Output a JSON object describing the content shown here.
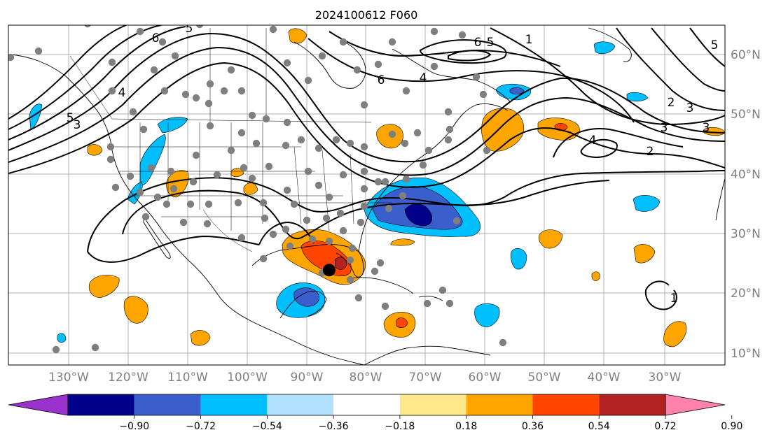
{
  "title": "2024100612 F060",
  "map": {
    "lon_labels": [
      "130°W",
      "120°W",
      "110°W",
      "100°W",
      "90°W",
      "80°W",
      "70°W",
      "60°W",
      "50°W",
      "40°W",
      "30°W"
    ],
    "lat_labels": [
      "10°N",
      "20°N",
      "30°N",
      "40°N",
      "50°N",
      "60°N"
    ],
    "grid": true,
    "label_color": "#808080"
  },
  "colorbar": {
    "ticks": [
      "−0.90",
      "−0.72",
      "−0.54",
      "−0.36",
      "−0.18",
      "0.18",
      "0.36",
      "0.54",
      "0.72",
      "0.90"
    ],
    "colors": [
      "#9932cc",
      "#00008b",
      "#3a5fcd",
      "#00bfff",
      "#b0e2ff",
      "#ffffff",
      "#ffe78a",
      "#ffa500",
      "#ff4500",
      "#b22222",
      "#ff82ab"
    ],
    "extend": "both"
  },
  "contour_labels": [
    "6",
    "5",
    "1",
    "4",
    "5",
    "6",
    "5",
    "4",
    "5",
    "3",
    "2",
    "3",
    "2",
    "4",
    "3",
    "6",
    "4",
    "3",
    "1"
  ],
  "storm_marker": {
    "lon": -86.3,
    "lat": 23.9
  }
}
